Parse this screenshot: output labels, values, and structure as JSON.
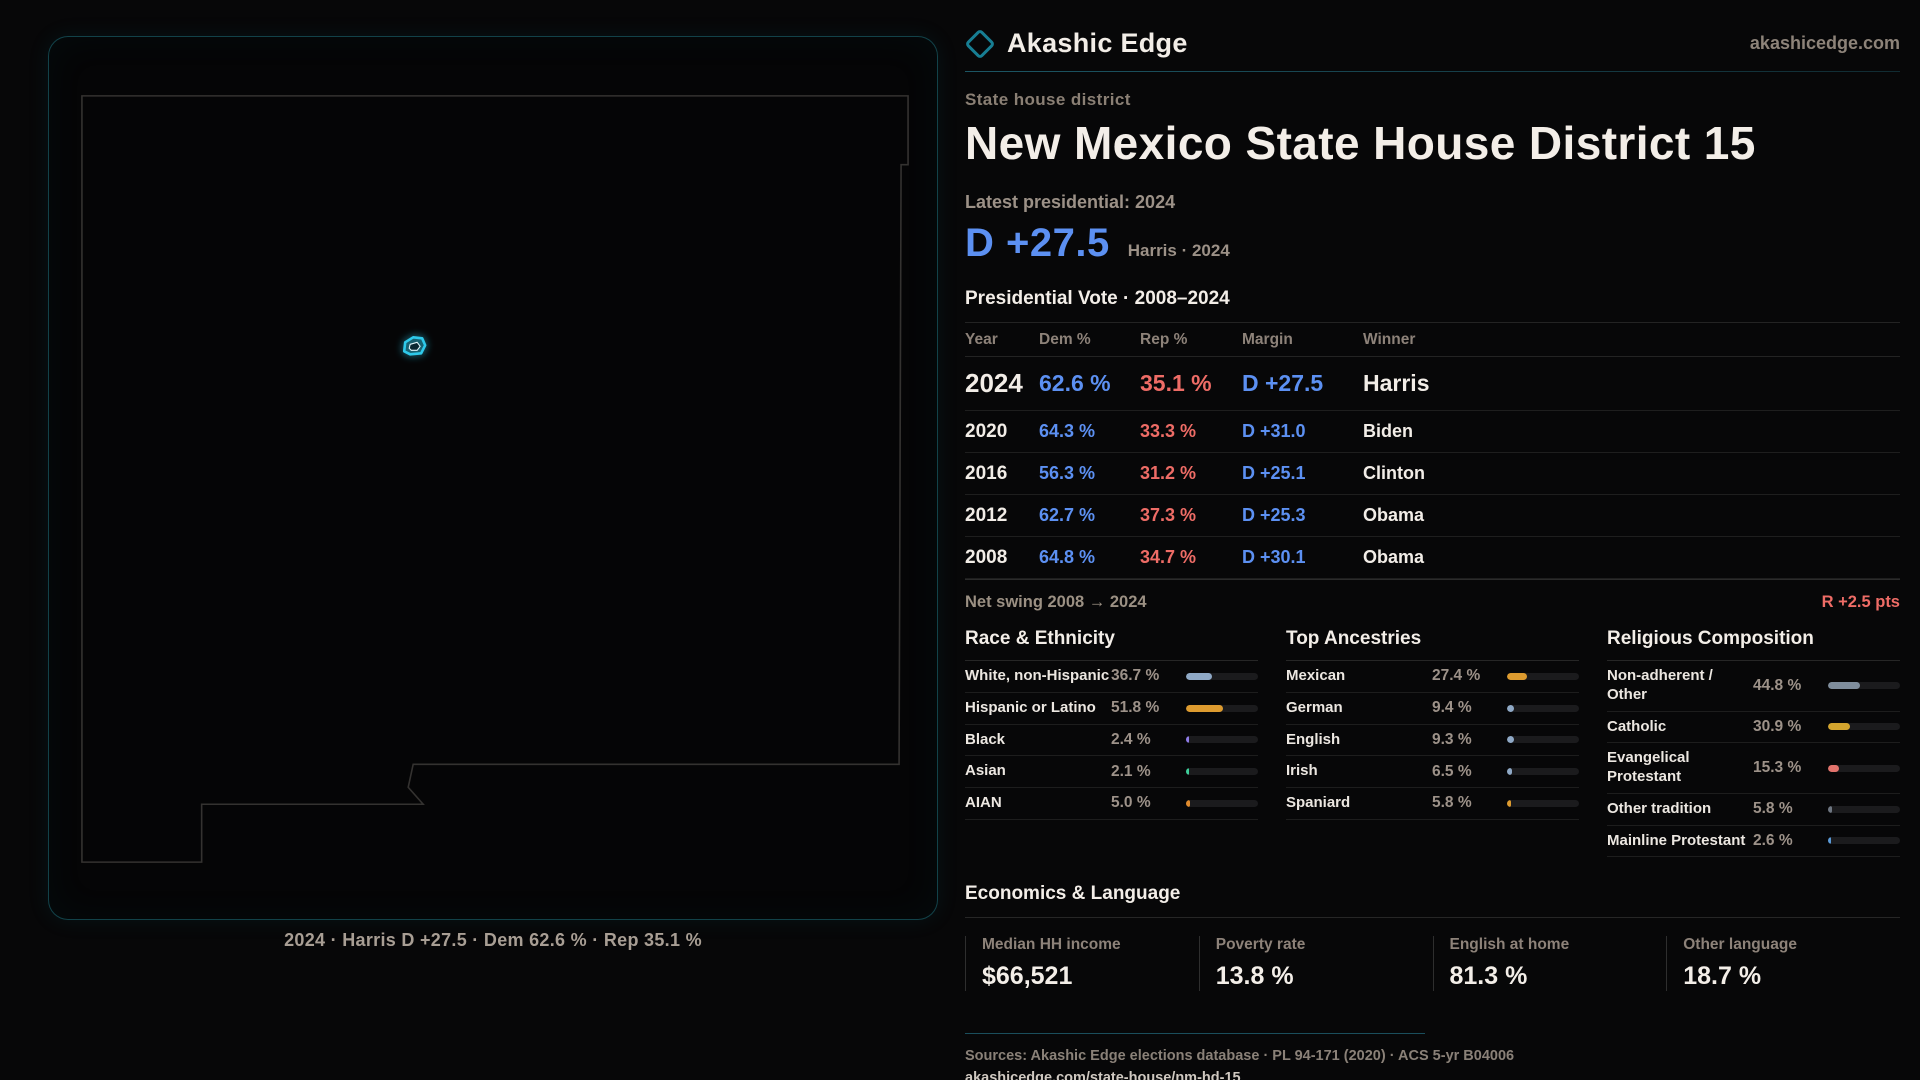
{
  "brand": {
    "name": "Akashic Edge",
    "site": "akashicedge.com"
  },
  "header": {
    "eyebrow": "State house district",
    "title": "New Mexico State House District 15",
    "latest_label": "Latest presidential: 2024",
    "headline_margin": "D +27.5",
    "headline_detail": "Harris · 2024"
  },
  "map": {
    "caption": "2024 · Harris D +27.5 · Dem 62.6 % · Rep 35.1 %"
  },
  "vote_table": {
    "title": "Presidential Vote · 2008–2024",
    "columns": {
      "year": "Year",
      "dem": "Dem %",
      "rep": "Rep %",
      "margin": "Margin",
      "winner": "Winner"
    },
    "rows": [
      {
        "year": "2024",
        "dem": "62.6 %",
        "rep": "35.1 %",
        "margin": "D +27.5",
        "winner": "Harris"
      },
      {
        "year": "2020",
        "dem": "64.3 %",
        "rep": "33.3 %",
        "margin": "D +31.0",
        "winner": "Biden"
      },
      {
        "year": "2016",
        "dem": "56.3 %",
        "rep": "31.2 %",
        "margin": "D +25.1",
        "winner": "Clinton"
      },
      {
        "year": "2012",
        "dem": "62.7 %",
        "rep": "37.3 %",
        "margin": "D +25.3",
        "winner": "Obama"
      },
      {
        "year": "2008",
        "dem": "64.8 %",
        "rep": "34.7 %",
        "margin": "D +30.1",
        "winner": "Obama"
      }
    ],
    "net_swing_label": "Net swing 2008 → 2024",
    "net_swing_value": "R +2.5 pts"
  },
  "demographics": {
    "race": {
      "title": "Race & Ethnicity",
      "rows": [
        {
          "label": "White, non-Hispanic",
          "value": "36.7 %",
          "pct": 36.7,
          "color": "#8fa9c6"
        },
        {
          "label": "Hispanic or Latino",
          "value": "51.8 %",
          "pct": 51.8,
          "color": "#dd9b2f"
        },
        {
          "label": "Black",
          "value": "2.4 %",
          "pct": 2.4,
          "color": "#8f7ce8"
        },
        {
          "label": "Asian",
          "value": "2.1 %",
          "pct": 2.1,
          "color": "#3ecf9a"
        },
        {
          "label": "AIAN",
          "value": "5.0 %",
          "pct": 5.0,
          "color": "#e08b2d"
        }
      ]
    },
    "ancestries": {
      "title": "Top Ancestries",
      "rows": [
        {
          "label": "Mexican",
          "value": "27.4 %",
          "pct": 27.4,
          "color": "#dd9b2f"
        },
        {
          "label": "German",
          "value": "9.4 %",
          "pct": 9.4,
          "color": "#8fa9c6"
        },
        {
          "label": "English",
          "value": "9.3 %",
          "pct": 9.3,
          "color": "#8fa9c6"
        },
        {
          "label": "Irish",
          "value": "6.5 %",
          "pct": 6.5,
          "color": "#8fa9c6"
        },
        {
          "label": "Spaniard",
          "value": "5.8 %",
          "pct": 5.8,
          "color": "#dd9b2f"
        }
      ]
    },
    "religion": {
      "title": "Religious Composition",
      "rows": [
        {
          "label": "Non-adherent / Other",
          "value": "44.8 %",
          "pct": 44.8,
          "color": "#7f8d9c"
        },
        {
          "label": "Catholic",
          "value": "30.9 %",
          "pct": 30.9,
          "color": "#d4a52e"
        },
        {
          "label": "Evangelical Protestant",
          "value": "15.3 %",
          "pct": 15.3,
          "color": "#e2736c"
        },
        {
          "label": "Other tradition",
          "value": "5.8 %",
          "pct": 5.8,
          "color": "#6e7681"
        },
        {
          "label": "Mainline Protestant",
          "value": "2.6 %",
          "pct": 2.6,
          "color": "#5b9bd8"
        }
      ]
    }
  },
  "economics": {
    "title": "Economics & Language",
    "stats": [
      {
        "label": "Median HH income",
        "value": "$66,521"
      },
      {
        "label": "Poverty rate",
        "value": "13.8 %"
      },
      {
        "label": "English at home",
        "value": "81.3 %"
      },
      {
        "label": "Other language",
        "value": "18.7 %"
      }
    ]
  },
  "footer": {
    "sources": "Sources: Akashic Edge elections database · PL 94-171 (2020) · ACS 5-yr B04006",
    "url": "akashicedge.com/state-house/nm-hd-15"
  },
  "colors": {
    "dem_blue": "#5c90f2",
    "rep_red": "#ee6c66",
    "accent_cyan": "#2ec9ea",
    "panel_border_teal": "#269eb0",
    "background": "#070708"
  }
}
